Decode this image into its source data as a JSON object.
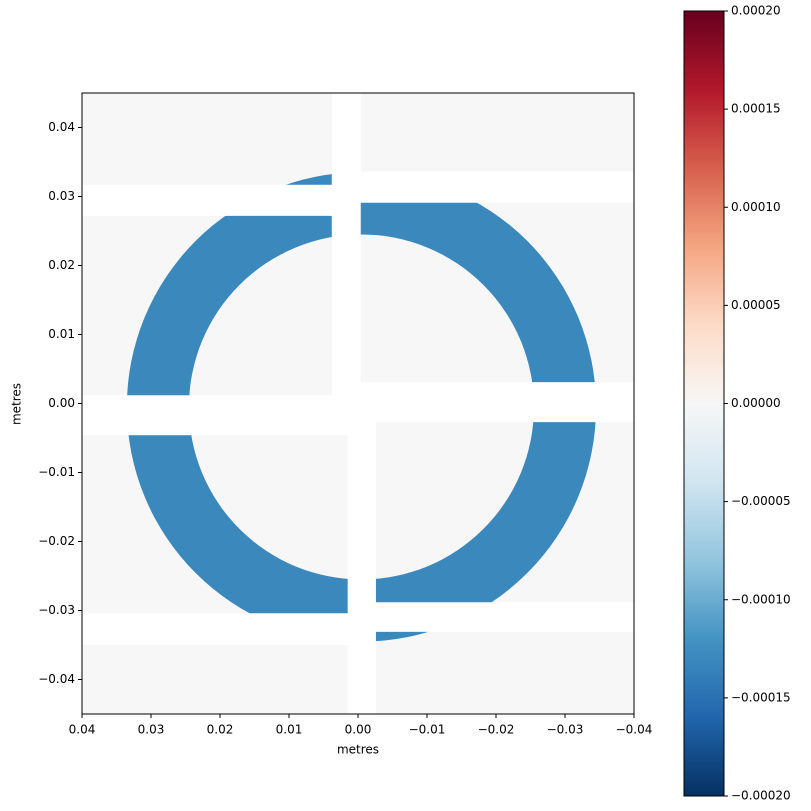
{
  "chart_data": {
    "type": "heatmap",
    "xlabel": "metres",
    "ylabel": "metres",
    "xlim": [
      0.04,
      -0.04
    ],
    "ylim": [
      -0.045,
      0.045
    ],
    "xticks": [
      0.04,
      0.03,
      0.02,
      0.01,
      {
        "value": 0,
        "label": "0.00"
      },
      {
        "value": -0.01,
        "label": "−0.01"
      },
      {
        "value": -0.02,
        "label": "−0.02"
      },
      {
        "value": -0.03,
        "label": "−0.03"
      },
      {
        "value": -0.04,
        "label": "−0.04"
      }
    ],
    "yticks": [
      0.04,
      0.03,
      0.02,
      0.01,
      {
        "value": 0,
        "label": "0.00"
      },
      {
        "value": -0.01,
        "label": "−0.01"
      },
      {
        "value": -0.02,
        "label": "−0.02"
      },
      {
        "value": -0.03,
        "label": "−0.03"
      },
      {
        "value": -0.04,
        "label": "−0.04"
      }
    ],
    "clim": [
      -0.0002,
      0.0002
    ],
    "colorbar_ticks": [
      {
        "value": 0.0002,
        "label": "0.00020"
      },
      {
        "value": 0.00015,
        "label": "0.00015"
      },
      {
        "value": 0.0001,
        "label": "0.00010"
      },
      {
        "value": 5e-05,
        "label": "0.00005"
      },
      {
        "value": 0,
        "label": "0.00000"
      },
      {
        "value": -5e-05,
        "label": "−0.00005"
      },
      {
        "value": -0.0001,
        "label": "−0.00010"
      },
      {
        "value": -0.00015,
        "label": "−0.00015"
      },
      {
        "value": -0.0002,
        "label": "−0.00020"
      }
    ],
    "colors": [
      "#053061",
      "#2166ac",
      "#4393c3",
      "#92c5de",
      "#d1e5f0",
      "#f7f7f7",
      "#fddbc7",
      "#f4a582",
      "#d6604d",
      "#b2182b",
      "#67001f"
    ],
    "panels": [
      {
        "x": [
          0.04,
          0.0038
        ],
        "y": [
          0.0317,
          0.045
        ],
        "value": 0
      },
      {
        "x": [
          -0.0004,
          -0.04
        ],
        "y": [
          0.0336,
          0.045
        ],
        "value": 0
      },
      {
        "x": [
          0.04,
          0.0038
        ],
        "y": [
          0.0012,
          0.0272
        ],
        "value": 0
      },
      {
        "x": [
          -0.0004,
          -0.04
        ],
        "y": [
          0.0031,
          0.0291
        ],
        "value": 0
      },
      {
        "x": [
          0.04,
          0.0015
        ],
        "y": [
          -0.0304,
          -0.0046
        ],
        "value": 0
      },
      {
        "x": [
          -0.0026,
          -0.04
        ],
        "y": [
          -0.0288,
          -0.0027
        ],
        "value": 0
      },
      {
        "x": [
          0.04,
          0.0015
        ],
        "y": [
          -0.045,
          -0.035
        ],
        "value": 0
      },
      {
        "x": [
          -0.0026,
          -0.04
        ],
        "y": [
          -0.045,
          -0.0331
        ],
        "value": 0
      }
    ],
    "ring": {
      "center": [
        -0.0005,
        -0.0005
      ],
      "inner_radius": 0.025,
      "outer_radius": 0.034,
      "value": -0.00013
    }
  }
}
